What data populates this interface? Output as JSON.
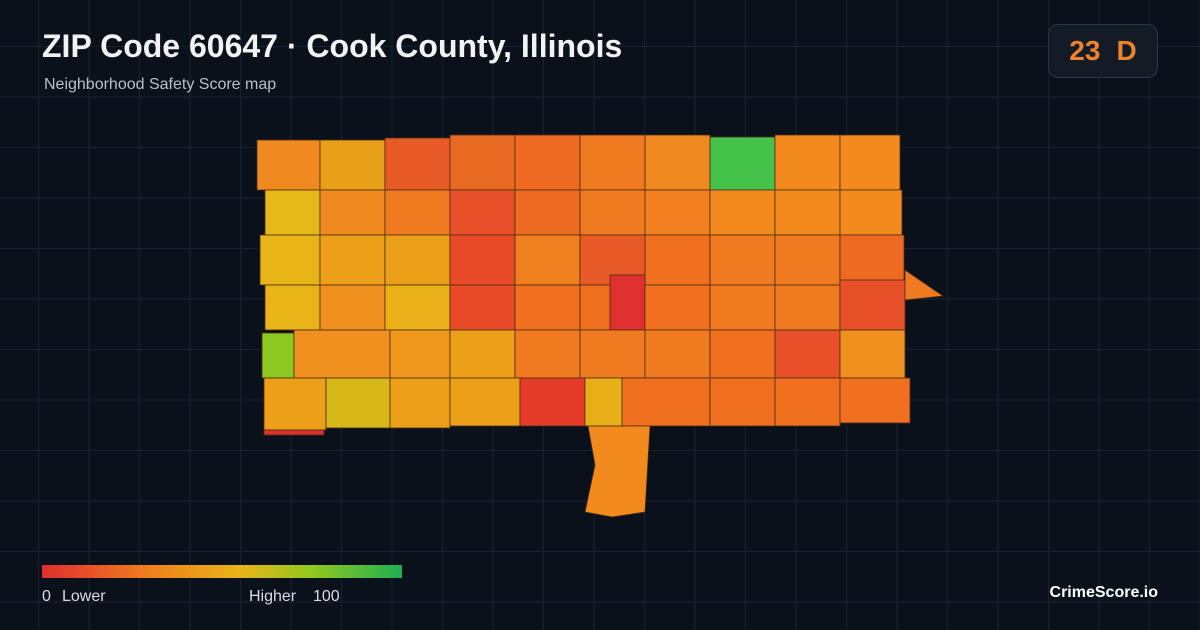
{
  "header": {
    "title": "ZIP Code 60647 · Cook County, Illinois",
    "subtitle": "Neighborhood Safety Score map"
  },
  "score": {
    "value": 23,
    "grade": "D"
  },
  "legend": {
    "min": 0,
    "min_label": "Lower",
    "max_label": "Higher",
    "max": 100
  },
  "brand": "CrimeScore.io"
}
